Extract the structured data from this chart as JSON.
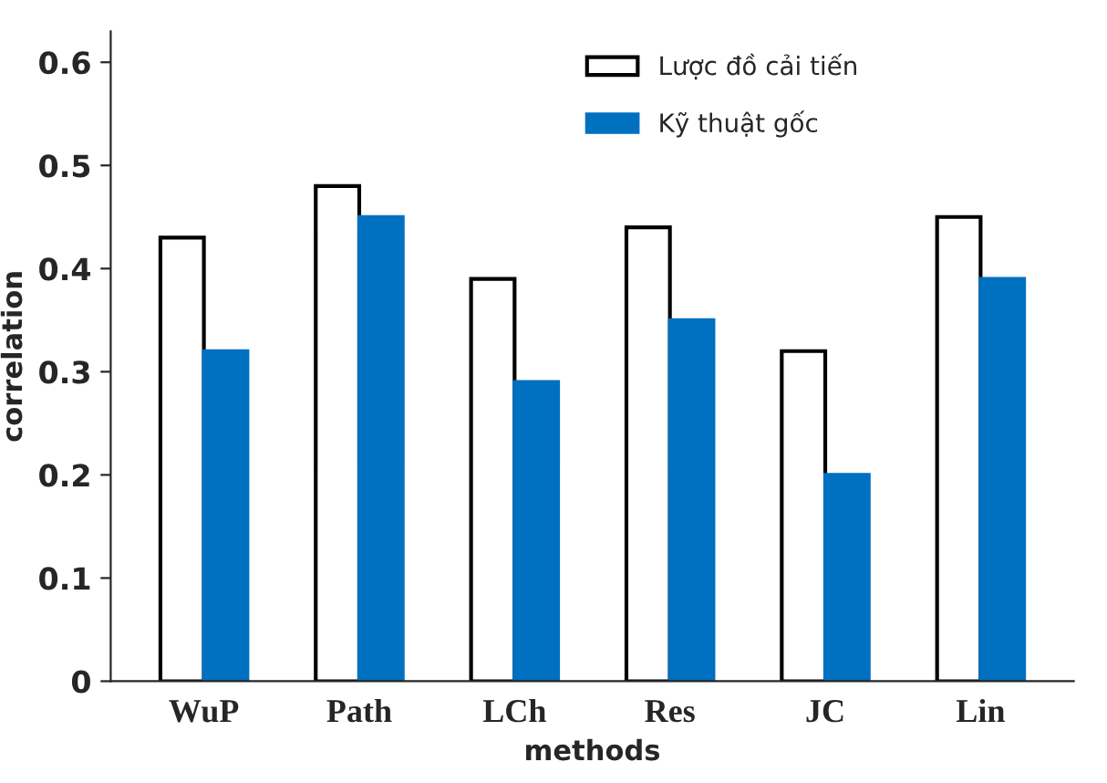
{
  "chart_data": {
    "type": "bar",
    "xlabel": "methods",
    "ylabel": "correlation",
    "categories": [
      "WuP",
      "Path",
      "LCh",
      "Res",
      "JC",
      "Lin"
    ],
    "series": [
      {
        "name": "Lược đồ cải tiến",
        "color": "#ffffff",
        "values": [
          0.43,
          0.48,
          0.39,
          0.44,
          0.32,
          0.45
        ]
      },
      {
        "name": "Kỹ thuật gốc",
        "color": "#0070c0",
        "values": [
          0.32,
          0.45,
          0.29,
          0.35,
          0.2,
          0.39
        ]
      }
    ],
    "ylim": [
      0,
      0.63
    ],
    "yticks": [
      0,
      0.1,
      0.2,
      0.3,
      0.4,
      0.5,
      0.6
    ],
    "grid": false,
    "legend": "top right"
  }
}
